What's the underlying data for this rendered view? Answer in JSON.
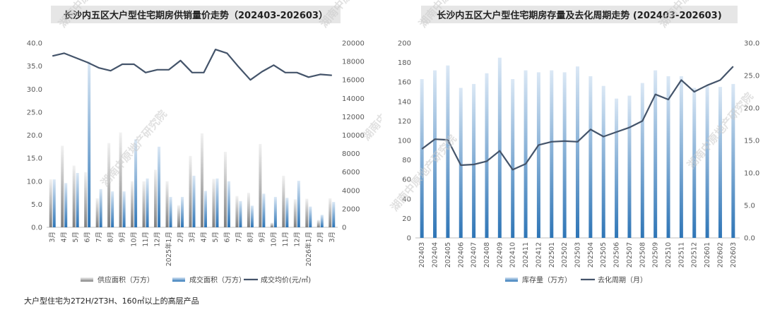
{
  "charts": [
    {
      "type": "bar",
      "title": "长沙内五区大户型住宅期房供销量价走势（202403-202603）",
      "categories": [
        "3月",
        "4月",
        "5月",
        "6月",
        "7月",
        "8月",
        "9月",
        "10月",
        "11月",
        "12月",
        "2025年1月",
        "2月",
        "3月",
        "4月",
        "5月",
        "6月",
        "7月",
        "8月",
        "9月",
        "10月",
        "11月",
        "12月",
        "2026年1月",
        "2月",
        "3月"
      ],
      "series": [
        {
          "name": "供应面积（万方）",
          "axis": "left",
          "color": "#a6a6a6",
          "values": [
            10.4,
            17.7,
            13.4,
            12.0,
            6.3,
            18.3,
            20.6,
            10.0,
            10.0,
            12.5,
            10.0,
            4.8,
            15.5,
            20.4,
            10.5,
            16.4,
            6.8,
            7.5,
            18.1,
            1.0,
            11.2,
            6.1,
            6.2,
            1.6,
            6.3
          ]
        },
        {
          "name": "成交面积（万方）",
          "axis": "left",
          "color": "#5b9bd5",
          "values": [
            10.4,
            9.6,
            11.8,
            36.0,
            8.3,
            7.8,
            7.8,
            19.1,
            10.6,
            17.5,
            6.6,
            6.6,
            11.2,
            7.9,
            10.6,
            10.0,
            5.7,
            4.7,
            7.3,
            6.6,
            6.4,
            10.1,
            4.5,
            2.7,
            5.5
          ]
        },
        {
          "name": "成交均价(元/㎡)",
          "axis": "right",
          "color": "#44546a",
          "values": [
            18600,
            18900,
            18400,
            17900,
            17300,
            17000,
            17700,
            17700,
            16800,
            17100,
            17100,
            18100,
            16800,
            16800,
            19300,
            18900,
            17400,
            16000,
            16900,
            17600,
            16800,
            16800,
            16300,
            16600,
            16500
          ]
        }
      ],
      "y_left": {
        "min": 0,
        "max": 40,
        "step": 5,
        "decimals": 1
      },
      "y_right": {
        "min": 0,
        "max": 20000,
        "step": 2000,
        "decimals": 0
      },
      "legend_position": "bottom",
      "grid": false
    },
    {
      "type": "bar",
      "title": "长沙内五区大户型住宅期房存量及去化周期走势 (202403-202603)",
      "categories": [
        "202403",
        "202404",
        "202405",
        "202406",
        "202407",
        "202408",
        "202409",
        "202410",
        "202411",
        "202412",
        "202501",
        "202502",
        "202503",
        "202504",
        "202505",
        "202506",
        "202507",
        "202508",
        "202509",
        "202510",
        "202511",
        "202512",
        "202601",
        "202602",
        "202603"
      ],
      "series": [
        {
          "name": "库存量（万方）",
          "axis": "left",
          "color": "#5b9bd5",
          "values": [
            163,
            172,
            177,
            154,
            158,
            169,
            185,
            163,
            172,
            170,
            172,
            170,
            176,
            166,
            156,
            143,
            146,
            159,
            172,
            166,
            166,
            154,
            156,
            155,
            158
          ]
        },
        {
          "name": "去化周期（月）",
          "axis": "right",
          "color": "#44546a",
          "values": [
            13.7,
            15.2,
            15.1,
            11.2,
            11.3,
            11.8,
            13.4,
            10.5,
            11.4,
            14.3,
            14.8,
            14.9,
            14.8,
            16.7,
            15.6,
            16.3,
            17.0,
            18.0,
            22.1,
            21.3,
            24.3,
            22.5,
            23.5,
            24.3,
            26.4
          ]
        }
      ],
      "y_left": {
        "min": 0,
        "max": 200,
        "step": 20,
        "decimals": 0
      },
      "y_right": {
        "min": 0,
        "max": 30,
        "step": 5,
        "decimals": 1
      },
      "legend_position": "bottom",
      "grid": false
    }
  ],
  "watermark_text": "湖南中原地产研究院",
  "footnote": "大户型住宅为2T2H/2T3H、160㎡以上的高层产品"
}
